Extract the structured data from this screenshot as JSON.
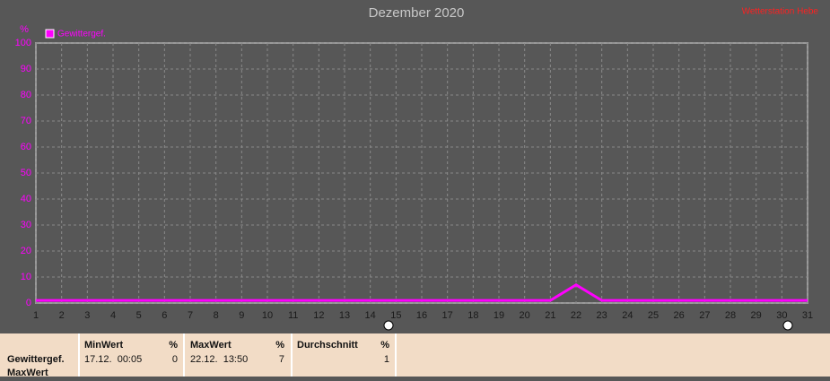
{
  "chart_data": {
    "type": "line",
    "title": "Dezember 2020",
    "station": "Wetterstation Hebe",
    "y_label": "%",
    "grid": true,
    "x": [
      1,
      2,
      3,
      4,
      5,
      6,
      7,
      8,
      9,
      10,
      11,
      12,
      13,
      14,
      15,
      16,
      17,
      18,
      19,
      20,
      21,
      22,
      23,
      24,
      25,
      26,
      27,
      28,
      29,
      30,
      31
    ],
    "series": [
      {
        "name": "Gewittergef.",
        "color": "#ff00ff",
        "values": [
          1,
          1,
          1,
          1,
          1,
          1,
          1,
          1,
          1,
          1,
          1,
          1,
          1,
          1,
          1,
          1,
          1,
          1,
          1,
          1,
          1,
          7,
          1,
          1,
          1,
          1,
          1,
          1,
          1,
          1,
          1
        ]
      }
    ],
    "xlim": [
      1,
      31
    ],
    "xticks": [
      1,
      2,
      3,
      4,
      5,
      6,
      7,
      8,
      9,
      10,
      11,
      12,
      13,
      14,
      15,
      16,
      17,
      18,
      19,
      20,
      21,
      22,
      23,
      24,
      25,
      26,
      27,
      28,
      29,
      30,
      31
    ],
    "ylim": [
      0,
      100
    ],
    "yticks": [
      0,
      10,
      20,
      30,
      40,
      50,
      60,
      70,
      80,
      90,
      100
    ]
  },
  "stats": {
    "row_label": "Gewittergef.",
    "row_sub": "MaxWert",
    "columns": [
      {
        "header": "MinWert",
        "unit": "%",
        "time": "17.12.  00:05",
        "value": "0"
      },
      {
        "header": "MaxWert",
        "unit": "%",
        "time": "22.12.  13:50",
        "value": "7"
      },
      {
        "header": "Durchschnitt",
        "unit": "%",
        "value": "1"
      }
    ]
  }
}
